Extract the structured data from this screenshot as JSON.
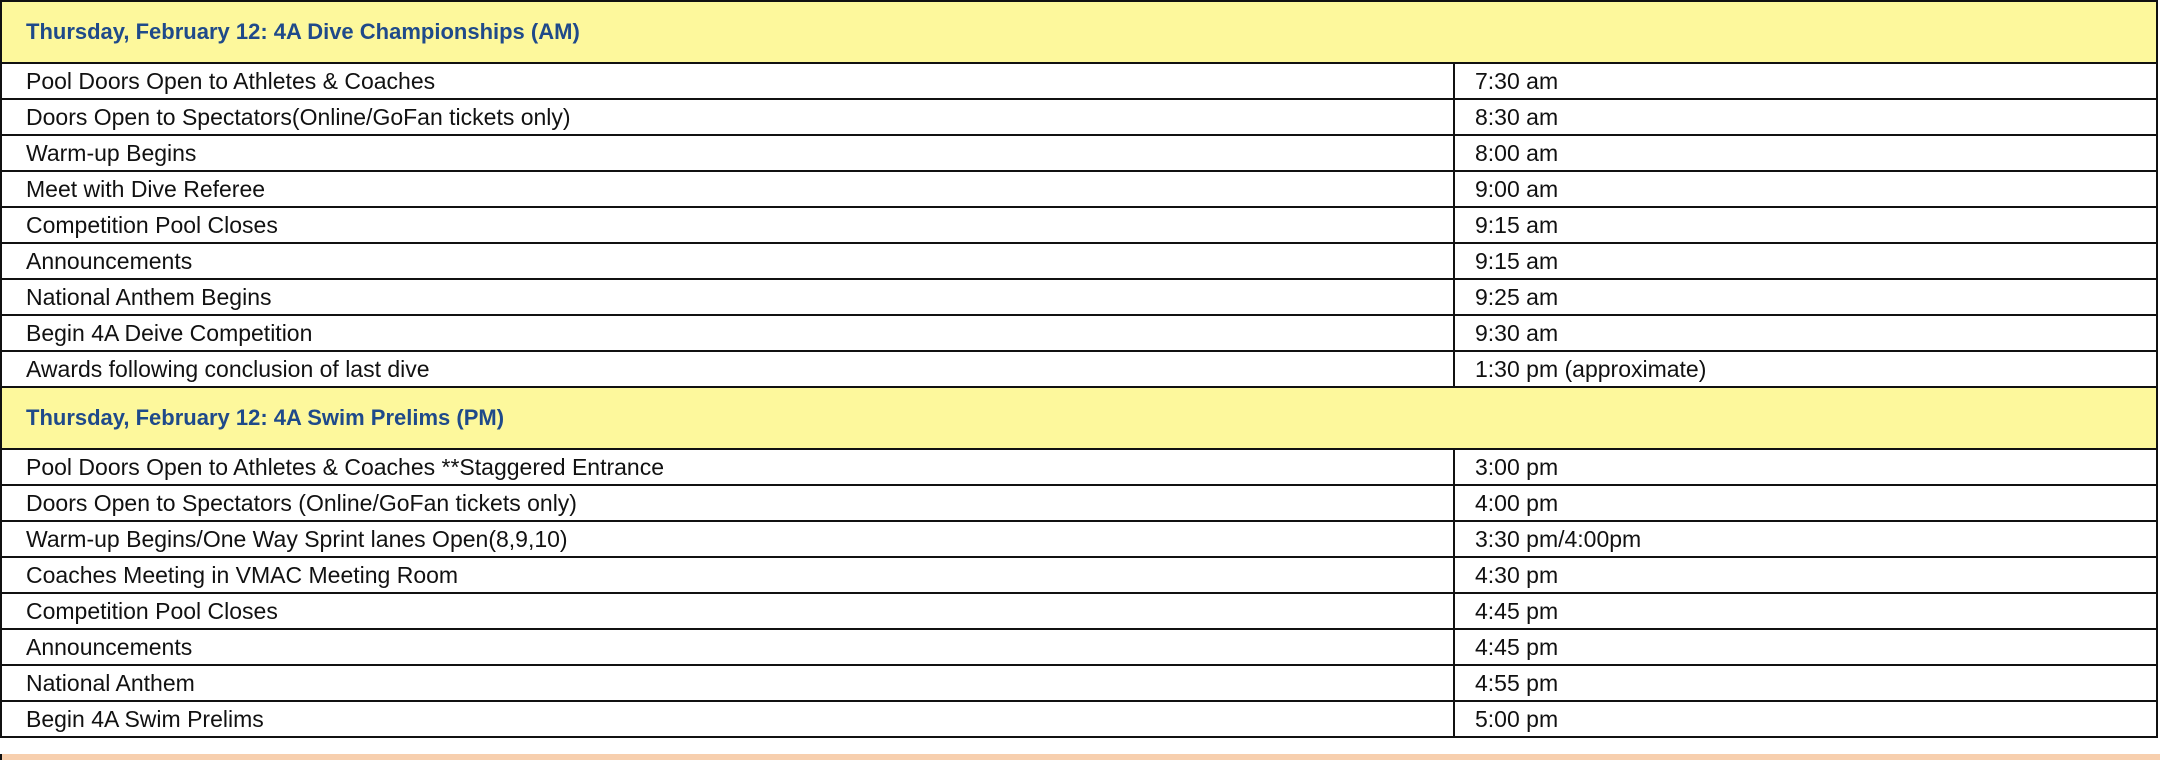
{
  "sections": [
    {
      "title": "Thursday, February 12:  4A Dive Championships (AM)",
      "rows": [
        {
          "event": "Pool Doors Open to Athletes & Coaches",
          "time": "7:30 am"
        },
        {
          "event": "Doors Open to Spectators(Online/GoFan tickets only)",
          "time": "8:30 am"
        },
        {
          "event": "Warm-up Begins",
          "time": "8:00 am"
        },
        {
          "event": "Meet with Dive Referee",
          "time": "9:00 am"
        },
        {
          "event": "Competition Pool Closes",
          "time": "9:15 am"
        },
        {
          "event": "Announcements",
          "time": "9:15 am"
        },
        {
          "event": "National Anthem Begins",
          "time": "9:25 am"
        },
        {
          "event": "Begin 4A Deive Competition",
          "time": "9:30 am"
        },
        {
          "event": "Awards following conclusion of last dive",
          "time": "1:30 pm (approximate)"
        }
      ]
    },
    {
      "title": "Thursday, February 12:  4A Swim Prelims (PM)",
      "rows": [
        {
          "event": "Pool Doors Open to Athletes & Coaches **Staggered Entrance",
          "time": "3:00 pm"
        },
        {
          "event": "Doors Open to Spectators (Online/GoFan tickets only)",
          "time": "4:00 pm"
        },
        {
          "event": "Warm-up Begins/One Way Sprint lanes Open(8,9,10)",
          "time": "3:30 pm/4:00pm"
        },
        {
          "event": "Coaches Meeting in VMAC Meeting Room",
          "time": "4:30 pm"
        },
        {
          "event": "Competition Pool Closes",
          "time": "4:45 pm"
        },
        {
          "event": "Announcements",
          "time": "4:45 pm"
        },
        {
          "event": "National Anthem",
          "time": "4:55 pm"
        },
        {
          "event": "Begin 4A Swim Prelims",
          "time": "5:00 pm"
        }
      ]
    }
  ],
  "colors": {
    "section_bg": "#fdf89c",
    "section_text": "#1f4a8a",
    "border": "#111111",
    "next_section_bg": "#f7cfae"
  }
}
